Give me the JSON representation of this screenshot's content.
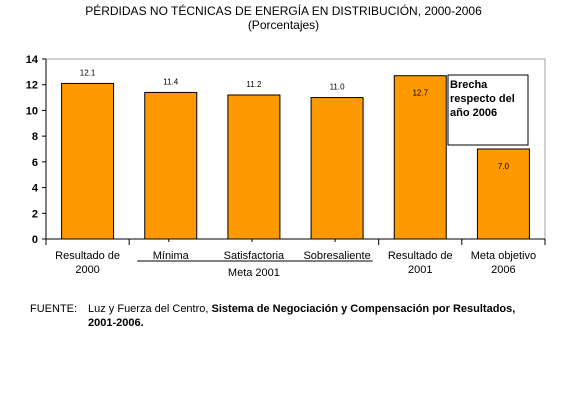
{
  "header": {
    "title": "PÉRDIDAS NO TÉCNICAS DE ENERGÍA EN DISTRIBUCIÓN, 2000-2006",
    "subtitle": "(Porcentajes)"
  },
  "chart_data": {
    "type": "bar",
    "title": "PÉRDIDAS NO TÉCNICAS DE ENERGÍA EN DISTRIBUCIÓN, 2000-2006",
    "subtitle": "(Porcentajes)",
    "categories": [
      [
        "Resultado de",
        "2000"
      ],
      [
        "Mínima"
      ],
      [
        "Satisfactoria"
      ],
      [
        "Sobresaliente"
      ],
      [
        "Resultado de",
        "2001"
      ],
      [
        "Meta objetivo",
        "2006"
      ]
    ],
    "values": [
      12.1,
      11.4,
      11.2,
      11.0,
      12.7,
      7.0
    ],
    "data_labels": [
      "12.1",
      "11.4",
      "11.2",
      "11.0",
      "12.7",
      "7.0"
    ],
    "yticks": [
      0,
      2,
      4,
      6,
      8,
      10,
      12,
      14
    ],
    "ylim": [
      0,
      14
    ],
    "group_label": "Meta 2001",
    "bar_color": "#ff9900",
    "grid": false,
    "annotation": [
      "Brecha",
      "respecto del",
      "año 2006"
    ]
  },
  "source": {
    "label": "FUENTE:",
    "text": "Luz y Fuerza del Centro, ",
    "bold": "Sistema de Negociación y Compensación por Resultados,",
    "bold2": "2001-2006."
  }
}
